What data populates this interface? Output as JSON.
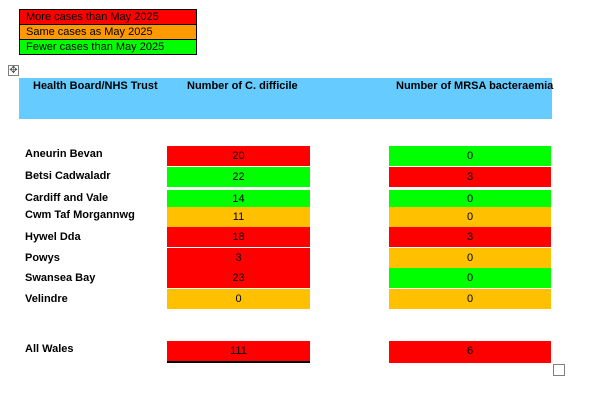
{
  "legend": [
    {
      "label": "More cases than May 2025",
      "color": "#ff0000"
    },
    {
      "label": "Same cases as May 2025",
      "color": "#ff9900"
    },
    {
      "label": "Fewer cases than May 2025",
      "color": "#00ff00"
    }
  ],
  "table": {
    "headers": {
      "board": "Health Board/NHS Trust",
      "cdiff": "Number of C. difficile",
      "mrsa": "Number of MRSA bacteraemia"
    },
    "rows": [
      {
        "name": "Aneurin Bevan",
        "cdiff": "20",
        "cdiff_status": "more",
        "mrsa": "0",
        "mrsa_status": "fewer"
      },
      {
        "name": "Betsi Cadwaladr",
        "cdiff": "22",
        "cdiff_status": "fewer",
        "mrsa": "3",
        "mrsa_status": "more"
      },
      {
        "name": "Cardiff and Vale",
        "cdiff": "14",
        "cdiff_status": "fewer",
        "mrsa": "0",
        "mrsa_status": "fewer"
      },
      {
        "name": "Cwm Taf Morgannwg",
        "cdiff": "11",
        "cdiff_status": "same",
        "mrsa": "0",
        "mrsa_status": "same"
      },
      {
        "name": "Hywel Dda",
        "cdiff": "18",
        "cdiff_status": "more",
        "mrsa": "3",
        "mrsa_status": "more"
      },
      {
        "name": "Powys",
        "cdiff": "3",
        "cdiff_status": "more",
        "mrsa": "0",
        "mrsa_status": "same"
      },
      {
        "name": "Swansea Bay",
        "cdiff": "23",
        "cdiff_status": "more",
        "mrsa": "0",
        "mrsa_status": "fewer"
      },
      {
        "name": "Velindre",
        "cdiff": "0",
        "cdiff_status": "same",
        "mrsa": "0",
        "mrsa_status": "same"
      }
    ],
    "total": {
      "name": "All Wales",
      "cdiff": "111",
      "cdiff_status": "more",
      "mrsa": "6",
      "mrsa_status": "more"
    }
  },
  "colors": {
    "more": "#ff0000",
    "same": "#ffc000",
    "fewer": "#00ff00",
    "header": "#66ccff"
  }
}
